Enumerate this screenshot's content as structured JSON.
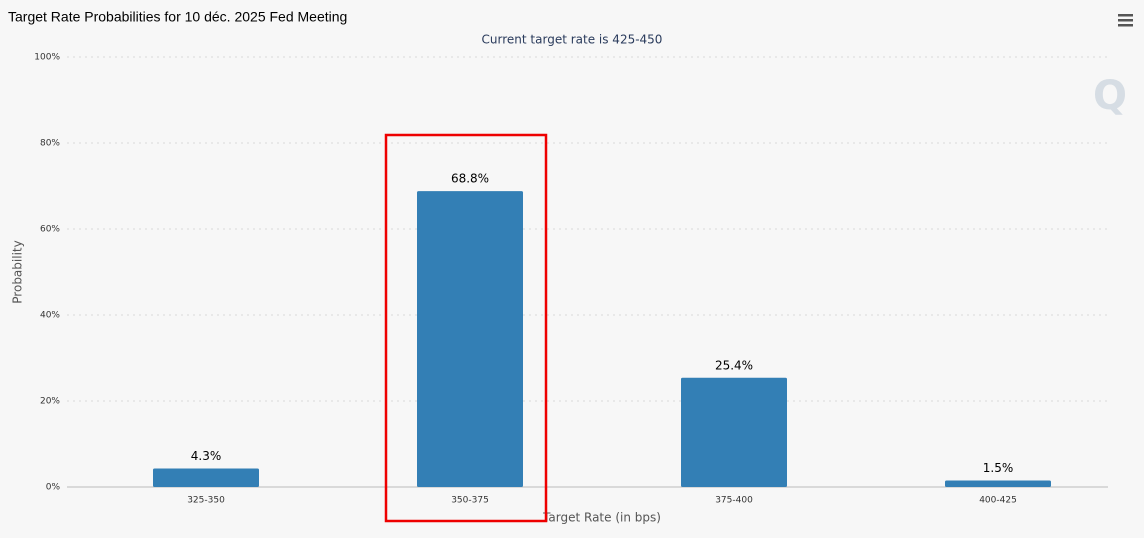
{
  "chart_data": {
    "type": "bar",
    "title": "Target Rate Probabilities for 10 déc. 2025 Fed Meeting",
    "subtitle": "Current target rate is 425-450",
    "x_label": "Target Rate (in bps)",
    "y_label": "Probability",
    "categories": [
      "325-350",
      "350-375",
      "375-400",
      "400-425"
    ],
    "values": [
      4.3,
      68.8,
      25.4,
      1.5
    ],
    "value_labels": [
      "4.3%",
      "68.8%",
      "25.4%",
      "1.5%"
    ],
    "color": "#337fb5",
    "ylim": [
      0,
      100
    ],
    "yticks": [
      {
        "value": 0,
        "label": "0%"
      },
      {
        "value": 20,
        "label": "20%"
      },
      {
        "value": 40,
        "label": "40%"
      },
      {
        "value": 60,
        "label": "60%"
      },
      {
        "value": 80,
        "label": "80%"
      },
      {
        "value": 100,
        "label": "100%"
      }
    ],
    "grid": true
  }
}
